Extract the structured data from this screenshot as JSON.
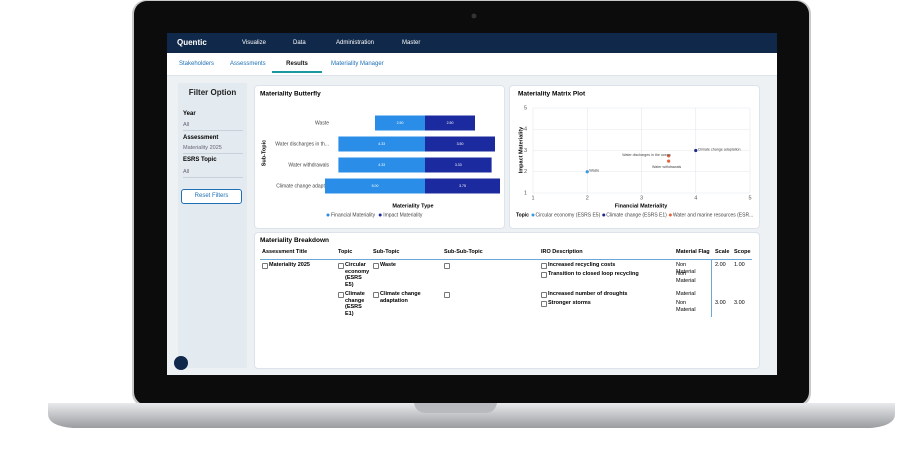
{
  "nav": {
    "brand": "Quentic",
    "items": [
      "Visualize",
      "Data",
      "Administration",
      "Master"
    ]
  },
  "tabs": [
    "Stakeholders",
    "Assessments",
    "Results",
    "Materiality Manager"
  ],
  "filter": {
    "title": "Filter Option",
    "fields": [
      {
        "label": "Year",
        "value": "All"
      },
      {
        "label": "Assessment",
        "value": "Materiality 2025"
      },
      {
        "label": "ESRS Topic",
        "value": "All"
      }
    ],
    "button": "Reset Filters"
  },
  "chart_data": [
    {
      "type": "butterfly",
      "title": "Materiality Butterfly",
      "y_label": "Sub-Topic",
      "x_label": "Materiality Type",
      "categories": [
        "Waste",
        "Water discharges in th...",
        "Water withdrawals",
        "Climate change adapt..."
      ],
      "xlim": [
        0,
        5
      ],
      "series": [
        {
          "name": "Financial Materiality",
          "color": "#2a8ee8",
          "values": [
            2.5,
            4.33,
            4.33,
            5
          ],
          "value_labels": [
            "2.50",
            "4.33",
            "4.33",
            "5.00"
          ]
        },
        {
          "name": "Impact Materiality",
          "color": "#1b2a9e",
          "values": [
            2.5,
            3.5,
            3.33,
            3.75
          ],
          "value_labels": [
            "2.50",
            "3.50",
            "3.33",
            "3.75"
          ]
        }
      ]
    },
    {
      "type": "scatter",
      "title": "Materiality Matrix Plot",
      "x_label": "Financial Materiality",
      "y_label": "Impact Materiality",
      "legend_title": "Topic",
      "xlim": [
        1,
        5
      ],
      "ylim": [
        1,
        5
      ],
      "xticks": [
        1,
        2,
        3,
        4,
        5
      ],
      "yticks": [
        1,
        2,
        3,
        4,
        5
      ],
      "grid": true,
      "series": [
        {
          "name": "Circular economy (ESRS E5)",
          "color": "#3b9be0",
          "x": [
            2
          ],
          "values": [
            2
          ],
          "labels": [
            "Waste"
          ]
        },
        {
          "name": "Climate change (ESRS E1)",
          "color": "#1f2a8a",
          "x": [
            4
          ],
          "values": [
            3
          ],
          "labels": [
            "Climate change adaptation"
          ]
        },
        {
          "name": "Water and marine resources (ESR...",
          "color": "#e8643c",
          "x": [
            3.5,
            3.5
          ],
          "values": [
            2.75,
            2.5
          ],
          "labels": [
            "Water discharges in the ocean",
            "Water withdrawals"
          ]
        }
      ]
    }
  ],
  "breakdown": {
    "title": "Materiality Breakdown",
    "columns": [
      "Assessment Title",
      "Topic",
      "Sub-Topic",
      "Sub-Sub-Topic",
      "IRO Description",
      "Material Flag",
      "Scale",
      "Scope"
    ],
    "rows": [
      {
        "assessment": "Materiality 2025",
        "topic": "Circular economy (ESRS E5)",
        "sub_topic": "Waste",
        "iro": "Increased recycling costs",
        "flag": "Non Material",
        "scale": "2.00",
        "scope": "1.00"
      },
      {
        "iro": "Transition to closed loop recycling",
        "flag": "Non Material"
      },
      {
        "topic": "Climate change (ESRS E1)",
        "sub_topic": "Climate change adaptation",
        "iro": "Increased number of droughts",
        "flag": "Material"
      },
      {
        "iro": "Stronger storms",
        "flag": "Non Material",
        "scale": "3.00",
        "scope": "3.00"
      }
    ]
  }
}
